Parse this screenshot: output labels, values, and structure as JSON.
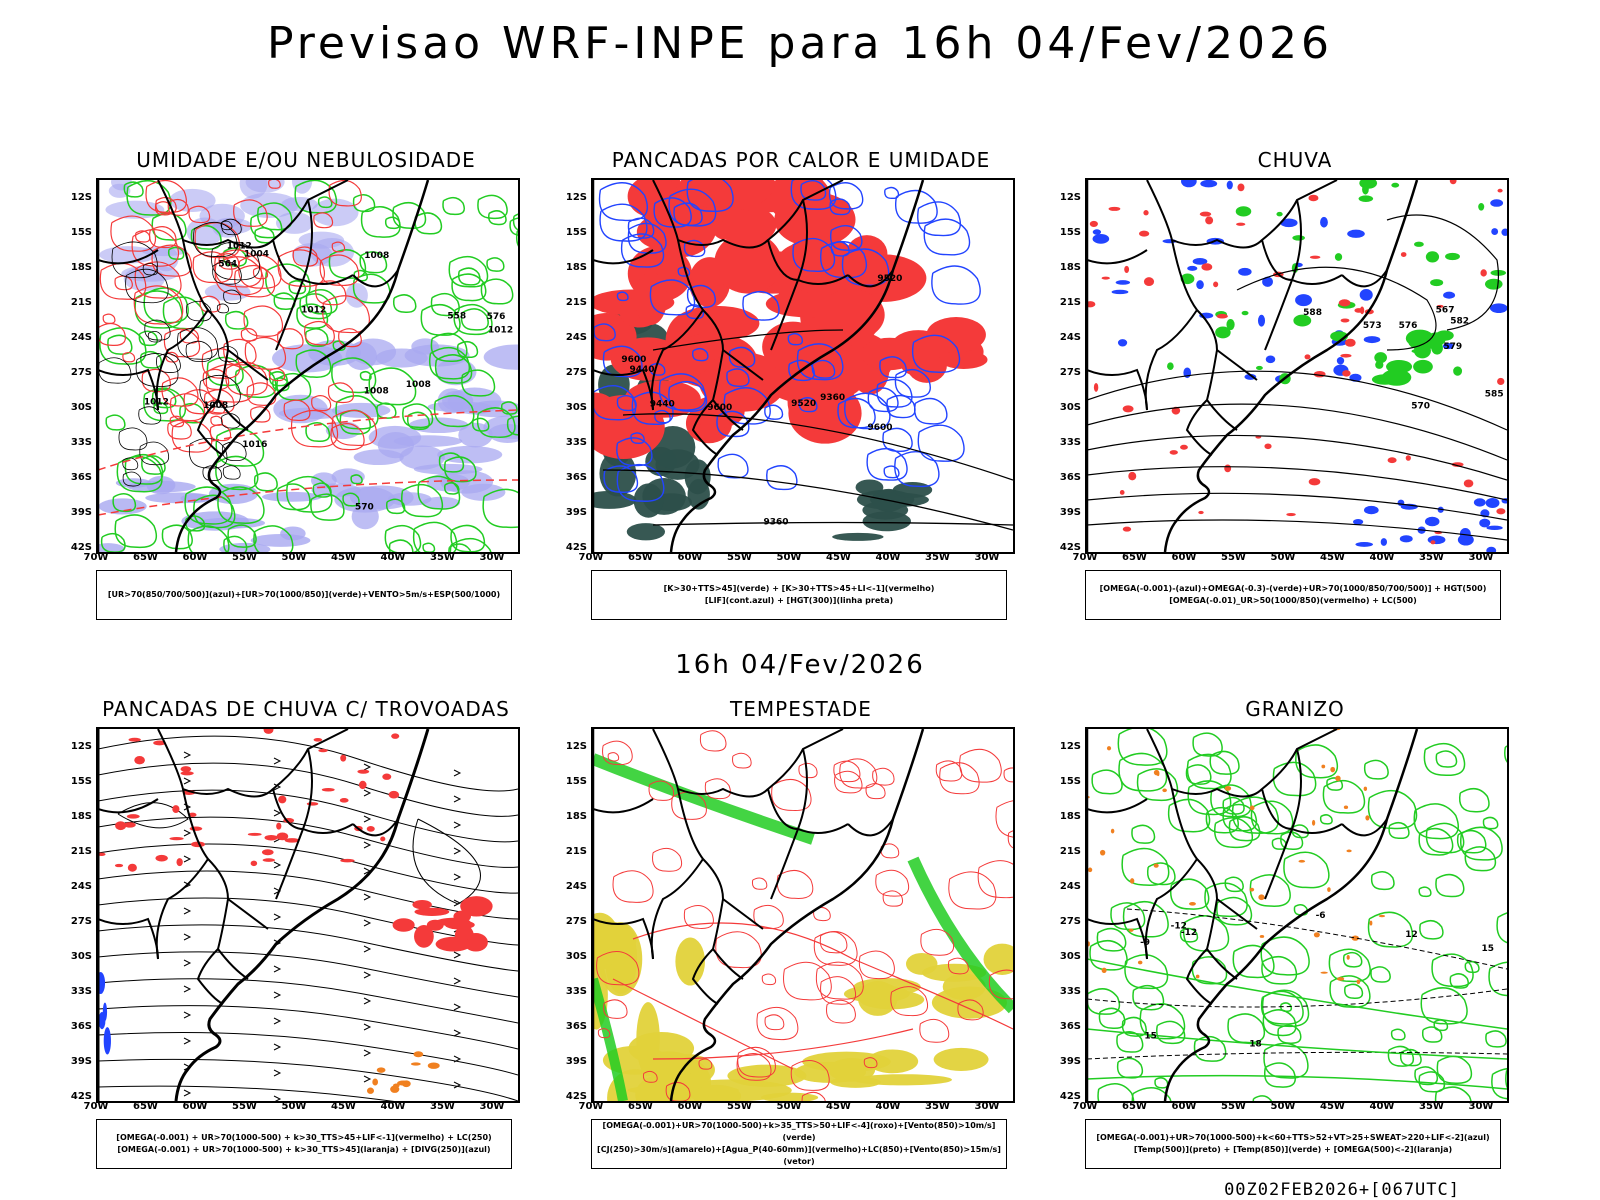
{
  "title": "Previsao WRF-INPE  para 16h 04/Fev/2026",
  "mid_title": "16h 04/Fev/2026",
  "footer": "00Z02FEB2026+[067UTC]",
  "axes": {
    "lat": [
      "12S",
      "15S",
      "18S",
      "21S",
      "24S",
      "27S",
      "30S",
      "33S",
      "36S",
      "39S",
      "42S"
    ],
    "lon": [
      "70W",
      "65W",
      "60W",
      "55W",
      "50W",
      "45W",
      "40W",
      "35W",
      "30W"
    ]
  },
  "panels": [
    {
      "title": "UMIDADE E/OU NEBULOSIDADE",
      "legend": [
        "[UR>70(850/700/500)](azul)+[UR>70(1000/850)](verde)+VENTO>5m/s+ESP(500/1000)"
      ],
      "contour_labels": [
        "1008",
        "1008",
        "1004",
        "1008",
        "1012",
        "1016",
        "1012",
        "1012",
        "1008",
        "1012",
        "576",
        "570",
        "564",
        "558"
      ]
    },
    {
      "title": "PANCADAS POR CALOR E UMIDADE",
      "legend": [
        "[K>30+TTS>45](verde) + [K>30+TTS>45+LI<-1](vermelho)",
        "[LIF](cont.azul) + [HGT(300)](linha preta)"
      ],
      "contour_labels": [
        "9600",
        "9600",
        "9520",
        "9600",
        "9520",
        "9440",
        "9440",
        "9360",
        "9360"
      ]
    },
    {
      "title": "CHUVA",
      "legend": [
        "[OMEGA(-0.001)-(azul)+OMEGA(-0.3)-(verde)+UR>70(1000/850/700/500)] + HGT(500)",
        "[OMEGA(-0.01)_UR>50(1000/850)(vermelho) + LC(500)"
      ],
      "contour_labels": [
        "588",
        "585",
        "582",
        "579",
        "576",
        "573",
        "570",
        "567"
      ]
    },
    {
      "title": "PANCADAS DE CHUVA C/ TROVOADAS",
      "legend": [
        "[OMEGA(-0.001) + UR>70(1000-500) + k>30_TTS>45+LIF<-1](vermelho) + LC(250)",
        "[OMEGA(-0.001) + UR>70(1000-500) + k>30_TTS>45](laranja) + [DIVG(250)](azul)"
      ],
      "contour_labels": []
    },
    {
      "title": "TEMPESTADE",
      "legend": [
        "[OMEGA(-0.001)+UR>70(1000-500)+k>35_TTS>50+LIF<-4](roxo)+[Vento(850)>10m/s](verde)",
        "[CJ(250)>30m/s](amarelo)+[Agua_P(40-60mm)](vermelho)+LC(850)+[Vento(850)>15m/s](vetor)"
      ],
      "contour_labels": []
    },
    {
      "title": "GRANIZO",
      "legend": [
        "[OMEGA(-0.001)+UR>70(1000-500)+k<60+TTS>52+VT>25+SWEAT>220+LIF<-2](azul)",
        "[Temp(500)](preto) + [Temp(850)](verde) + [OMEGA(500)<-2](laranja)"
      ],
      "contour_labels": [
        "-6",
        "-9",
        "-12",
        "15",
        "18",
        "12",
        "-12",
        "15"
      ]
    }
  ],
  "colors": {
    "red": "#f43a3a",
    "green": "#22cc22",
    "blue": "#2244ff",
    "lavender": "#a8a8f0",
    "darkteal": "#2c4f4a",
    "yellow": "#e2d23a",
    "orange": "#f08020"
  }
}
